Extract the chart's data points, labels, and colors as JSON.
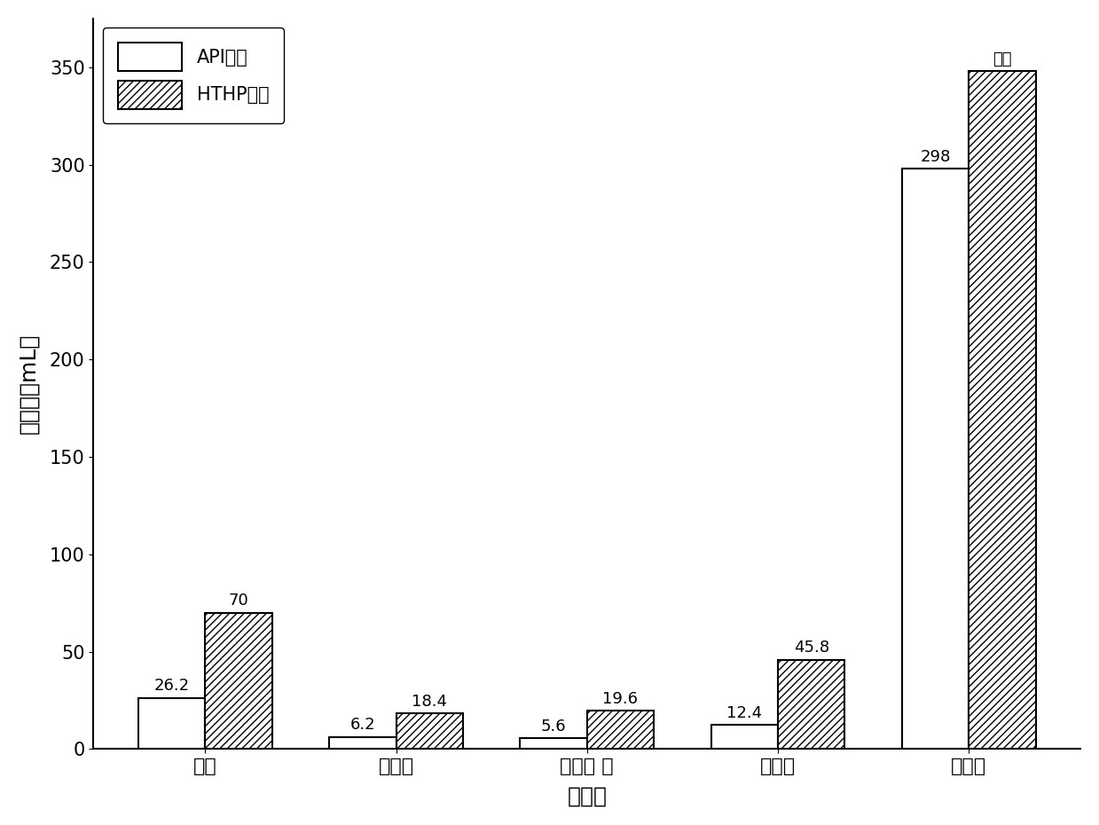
{
  "categories": [
    "空白",
    "多功能",
    "降滤失 剂",
    "润滑剂",
    "抑制剂"
  ],
  "api_values": [
    26.2,
    6.2,
    5.6,
    12.4,
    298
  ],
  "hthp_values": [
    70,
    18.4,
    19.6,
    45.8,
    348
  ],
  "api_labels": [
    "26.2",
    "6.2",
    "5.6",
    "12.4",
    "298"
  ],
  "hthp_labels": [
    "70",
    "18.4",
    "19.6",
    "45.8",
    "全失"
  ],
  "ylabel": "滤失量（mL）",
  "xlabel": "处理剂",
  "legend_api": "API失水",
  "legend_hthp": "HTHP失水",
  "ylim": [
    0,
    375
  ],
  "yticks": [
    0,
    50,
    100,
    150,
    200,
    250,
    300,
    350
  ],
  "bar_width": 0.35,
  "background_color": "#ffffff",
  "api_color": "#ffffff",
  "hthp_color": "#ffffff",
  "edge_color": "#000000",
  "hatch_pattern": "////"
}
